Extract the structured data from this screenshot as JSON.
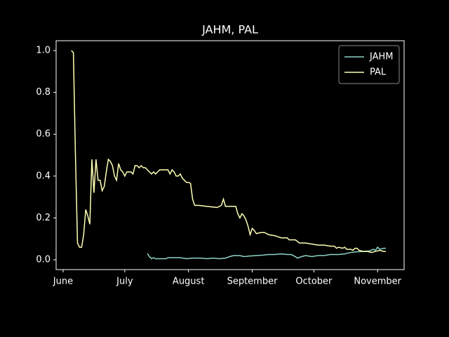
{
  "chart_data": {
    "type": "line",
    "title": "JAHM, PAL",
    "xlim": [
      -3.4,
      165.9
    ],
    "xticks": [
      {
        "value": 0,
        "label": "June"
      },
      {
        "value": 30,
        "label": "July"
      },
      {
        "value": 61,
        "label": "August"
      },
      {
        "value": 92,
        "label": "September"
      },
      {
        "value": 122,
        "label": "October"
      },
      {
        "value": 153,
        "label": "November"
      }
    ],
    "ylim": [
      -0.047,
      1.047
    ],
    "yticks": [
      {
        "value": 0,
        "label": "0.0"
      },
      0.2,
      0.4,
      0.6,
      0.8,
      {
        "value": 1,
        "label": "1.0"
      }
    ],
    "legend": "upper right",
    "series": [
      {
        "name": "JAHM",
        "color": "#8dd3c7",
        "x": [
          41,
          42,
          43,
          44,
          45,
          48,
          50,
          51,
          53,
          57,
          60,
          63,
          67,
          70,
          73,
          76,
          79,
          81,
          83,
          86,
          88,
          91,
          94,
          97,
          100,
          103,
          106,
          109,
          111,
          113,
          114,
          116,
          118,
          121,
          124,
          127,
          130,
          134,
          137,
          140,
          143,
          146,
          149,
          151,
          152,
          153,
          154,
          156,
          157
        ],
        "values": [
          0.03,
          0.015,
          0.005,
          0.01,
          0.005,
          0.005,
          0.005,
          0.01,
          0.01,
          0.01,
          0.005,
          0.008,
          0.008,
          0.005,
          0.008,
          0.005,
          0.008,
          0.015,
          0.02,
          0.02,
          0.015,
          0.018,
          0.02,
          0.022,
          0.025,
          0.025,
          0.028,
          0.025,
          0.025,
          0.015,
          0.008,
          0.015,
          0.02,
          0.015,
          0.02,
          0.02,
          0.025,
          0.025,
          0.028,
          0.035,
          0.038,
          0.04,
          0.042,
          0.05,
          0.045,
          0.06,
          0.05,
          0.055,
          0.055
        ]
      },
      {
        "name": "PAL",
        "color": "#feffb3",
        "x": [
          4,
          5,
          6,
          7,
          8,
          9,
          10,
          11,
          12,
          13,
          14,
          15,
          16,
          17,
          18,
          19,
          20,
          21,
          22,
          23,
          24,
          25,
          26,
          27,
          28,
          29,
          30,
          31,
          32,
          33,
          34,
          35,
          36,
          37,
          38,
          39,
          40,
          41,
          42,
          43,
          44,
          45,
          46,
          47,
          48,
          49,
          50,
          51,
          52,
          53,
          54,
          55,
          56,
          57,
          58,
          59,
          60,
          61,
          62,
          63,
          64,
          66,
          70,
          75,
          77,
          78,
          79,
          84,
          85,
          86,
          87,
          88,
          89,
          90,
          91,
          92,
          93,
          94,
          96,
          98,
          100,
          103,
          106,
          109,
          110,
          113,
          115,
          118,
          121,
          124,
          127,
          130,
          132,
          133,
          134,
          136,
          137,
          138,
          140,
          141,
          142,
          143,
          144,
          146,
          148,
          150,
          152,
          154,
          156,
          157
        ],
        "values": [
          1.0,
          0.99,
          0.5,
          0.08,
          0.06,
          0.06,
          0.12,
          0.24,
          0.21,
          0.17,
          0.48,
          0.32,
          0.48,
          0.38,
          0.38,
          0.33,
          0.35,
          0.42,
          0.48,
          0.47,
          0.45,
          0.4,
          0.38,
          0.46,
          0.43,
          0.42,
          0.4,
          0.42,
          0.42,
          0.42,
          0.41,
          0.45,
          0.45,
          0.44,
          0.45,
          0.44,
          0.44,
          0.43,
          0.42,
          0.41,
          0.42,
          0.41,
          0.42,
          0.43,
          0.43,
          0.43,
          0.43,
          0.43,
          0.41,
          0.43,
          0.42,
          0.4,
          0.4,
          0.41,
          0.39,
          0.38,
          0.37,
          0.37,
          0.365,
          0.29,
          0.26,
          0.26,
          0.255,
          0.25,
          0.26,
          0.29,
          0.255,
          0.255,
          0.22,
          0.2,
          0.22,
          0.21,
          0.19,
          0.16,
          0.12,
          0.15,
          0.14,
          0.125,
          0.13,
          0.13,
          0.12,
          0.115,
          0.105,
          0.105,
          0.095,
          0.095,
          0.08,
          0.08,
          0.075,
          0.07,
          0.07,
          0.065,
          0.065,
          0.055,
          0.06,
          0.055,
          0.06,
          0.05,
          0.05,
          0.045,
          0.055,
          0.055,
          0.045,
          0.04,
          0.04,
          0.035,
          0.04,
          0.045,
          0.04,
          0.04
        ]
      }
    ]
  }
}
